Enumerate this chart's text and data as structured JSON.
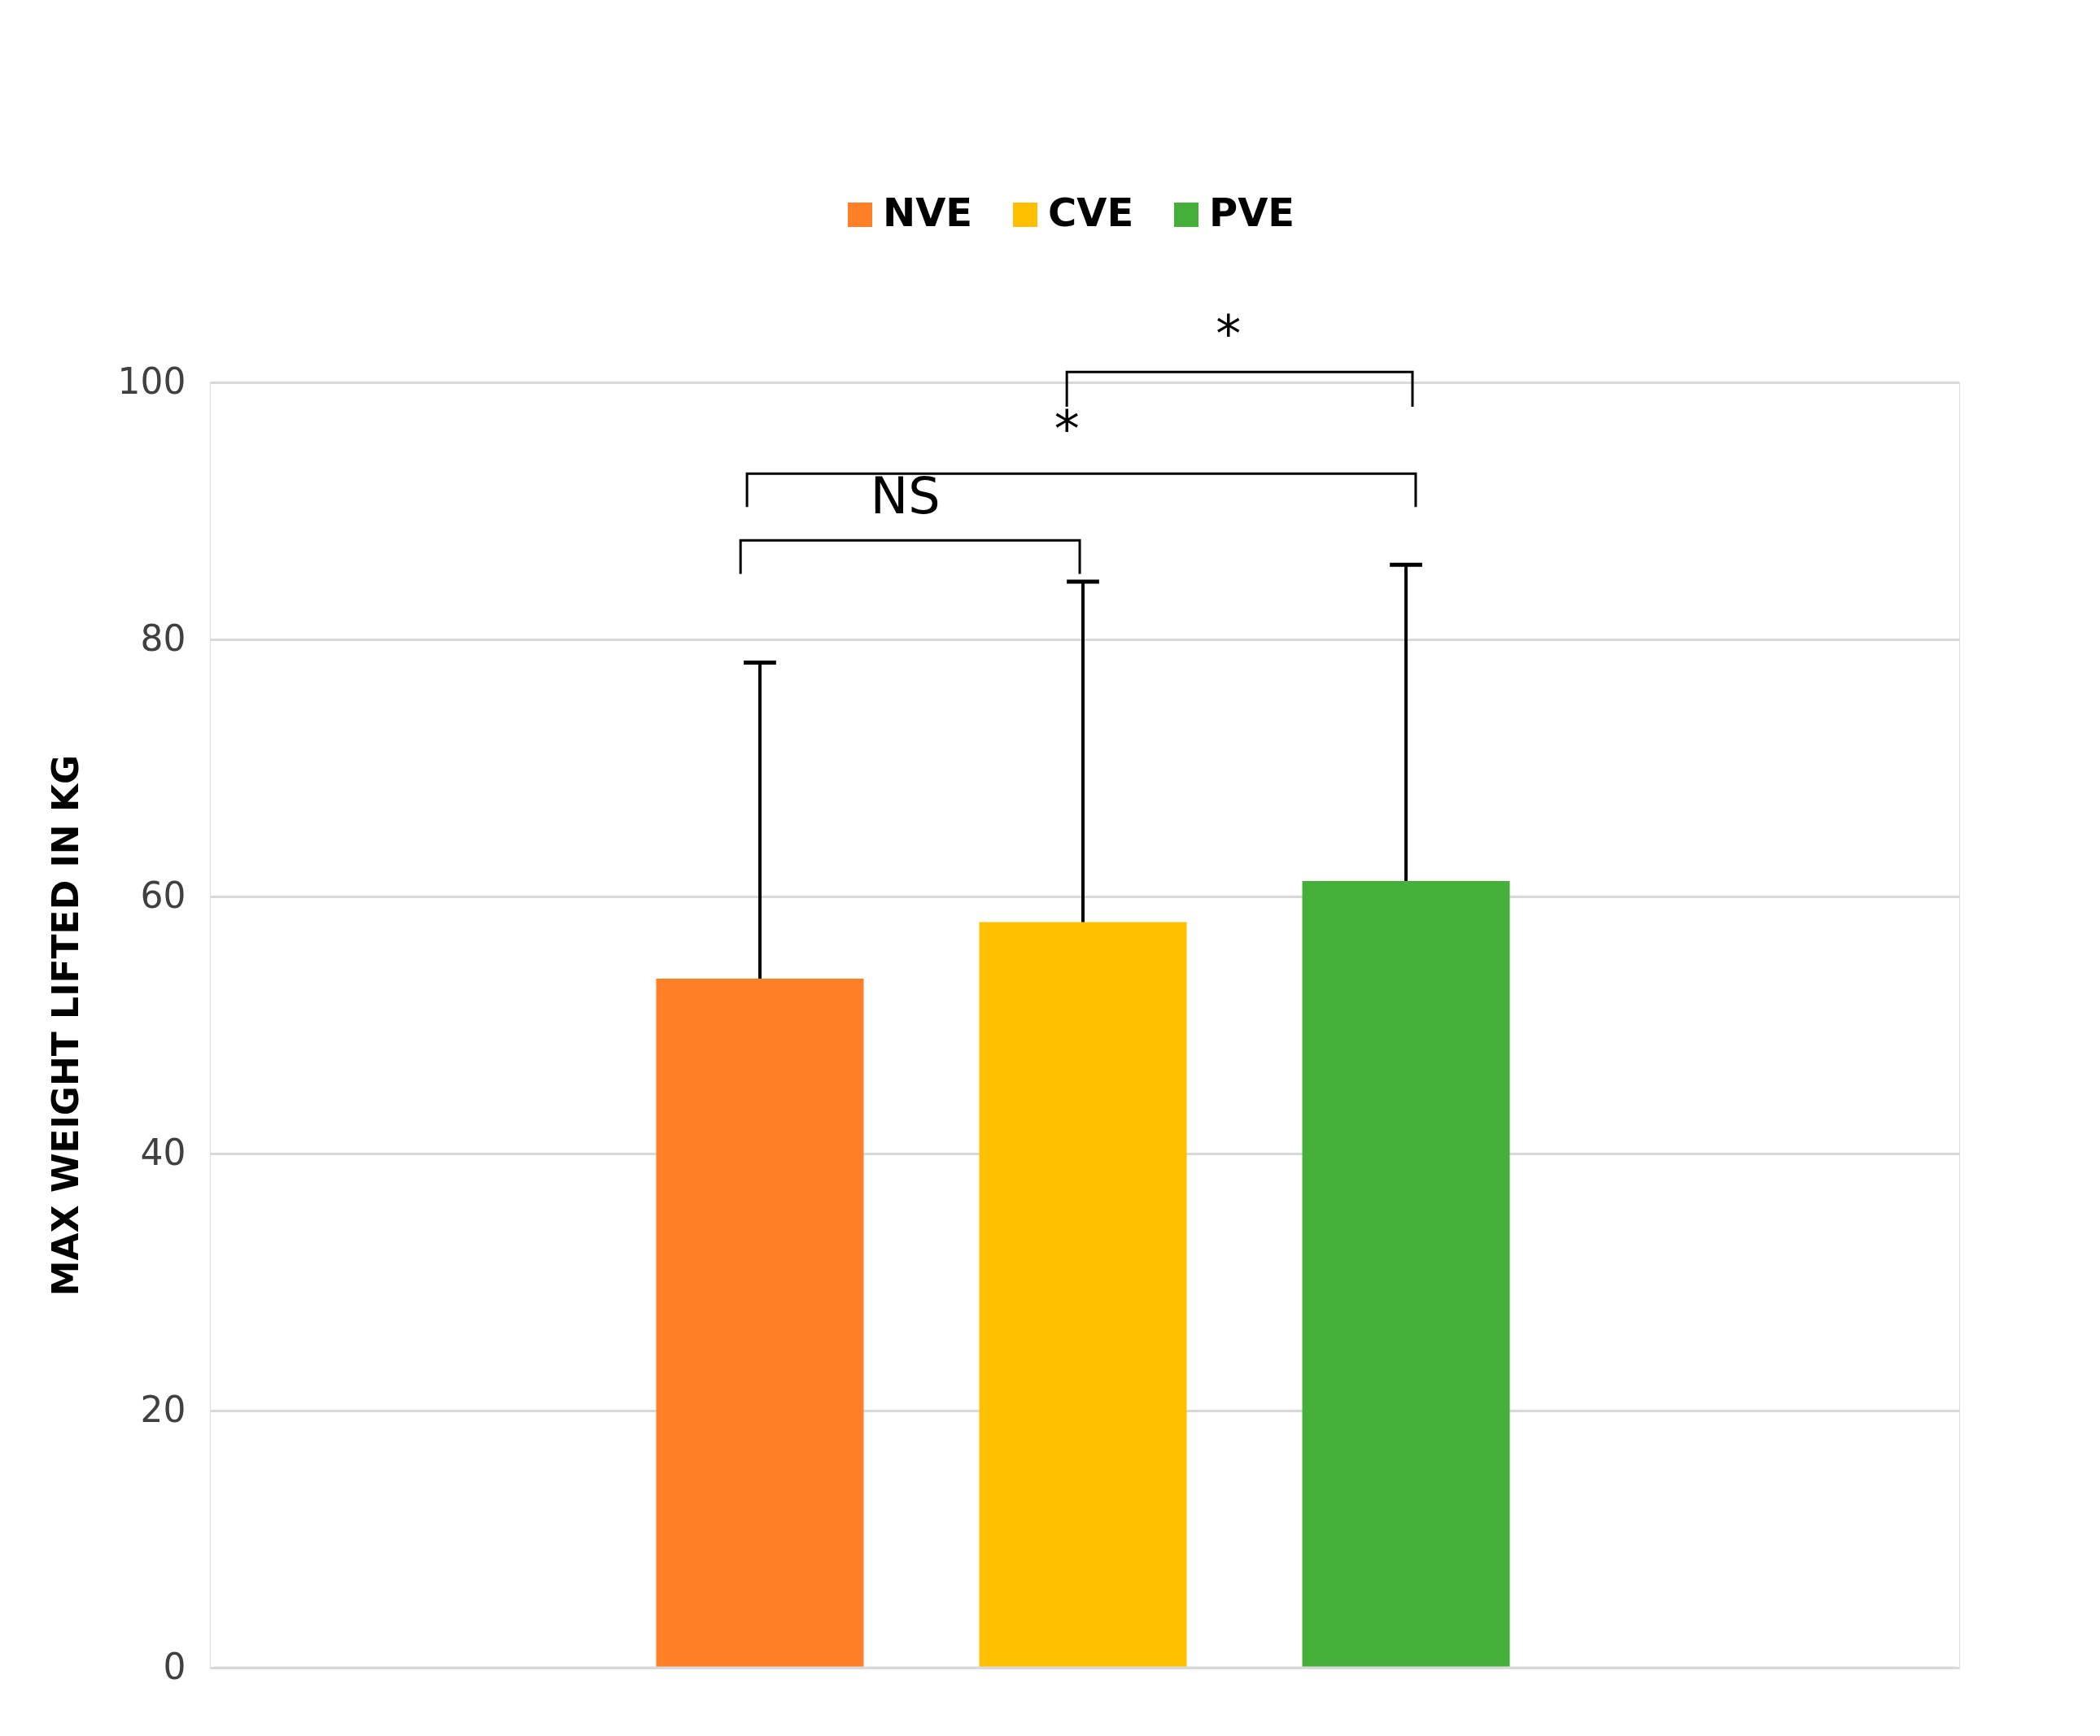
{
  "chart_data": {
    "type": "bar",
    "ylabel": "MAX WEIGHT LIFTED IN KG",
    "categories": [
      null
    ],
    "series": [
      {
        "name": "NVE",
        "color": "#ff7f27",
        "values": [
          53.6
        ],
        "errors": [
          [
            53.6,
            78.2
          ]
        ]
      },
      {
        "name": "CVE",
        "color": "#ffc000",
        "values": [
          58.0
        ],
        "errors": [
          [
            58.0,
            84.5
          ]
        ]
      },
      {
        "name": "PVE",
        "color": "#44b039",
        "values": [
          61.2
        ],
        "errors": [
          [
            61.2,
            85.8
          ]
        ]
      }
    ],
    "ylim": [
      0,
      100
    ],
    "yticks": [
      0,
      20,
      40,
      60,
      80,
      100
    ],
    "grid": "y",
    "legend": "top",
    "tick_labels": "y",
    "annotations": [
      "NS",
      "*",
      "*"
    ]
  }
}
